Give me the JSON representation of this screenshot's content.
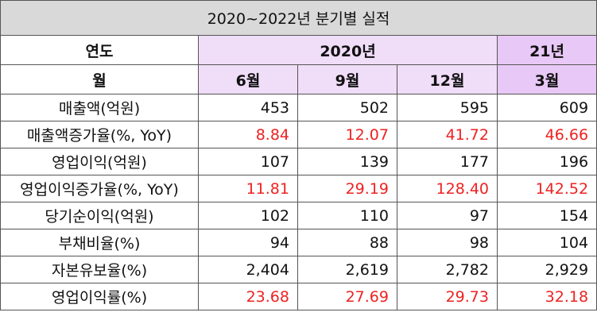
{
  "title": "2020~2022년 분기별 실적",
  "header": {
    "year_label": "연도",
    "month_label": "월",
    "year_2020": "2020년",
    "year_21": "21년",
    "months": [
      "6월",
      "9월",
      "12월",
      "3월"
    ]
  },
  "rows": [
    {
      "label": "매출액(억원)",
      "values": [
        "453",
        "502",
        "595",
        "609"
      ],
      "highlight": false
    },
    {
      "label": "매출액증가율(%, YoY)",
      "values": [
        "8.84",
        "12.07",
        "41.72",
        "46.66"
      ],
      "highlight": true
    },
    {
      "label": "영업이익(억원)",
      "values": [
        "107",
        "139",
        "177",
        "196"
      ],
      "highlight": false
    },
    {
      "label": "영업이익증가율(%, YoY)",
      "values": [
        "11.81",
        "29.19",
        "128.40",
        "142.52"
      ],
      "highlight": true
    },
    {
      "label": "당기순이익(억원)",
      "values": [
        "102",
        "110",
        "97",
        "154"
      ],
      "highlight": false
    },
    {
      "label": "부채비율(%)",
      "values": [
        "94",
        "88",
        "98",
        "104"
      ],
      "highlight": false
    },
    {
      "label": "자본유보율(%)",
      "values": [
        "2,404",
        "2,619",
        "2,782",
        "2,929"
      ],
      "highlight": false
    },
    {
      "label": "영업이익률(%)",
      "values": [
        "23.68",
        "27.69",
        "29.73",
        "32.18"
      ],
      "highlight": true
    }
  ],
  "colors": {
    "title_bg": "#d9d9d9",
    "header_bg": "#f0ddf8",
    "header_bg_21": "#e8c8f6",
    "highlight_text": "#ee2222"
  }
}
